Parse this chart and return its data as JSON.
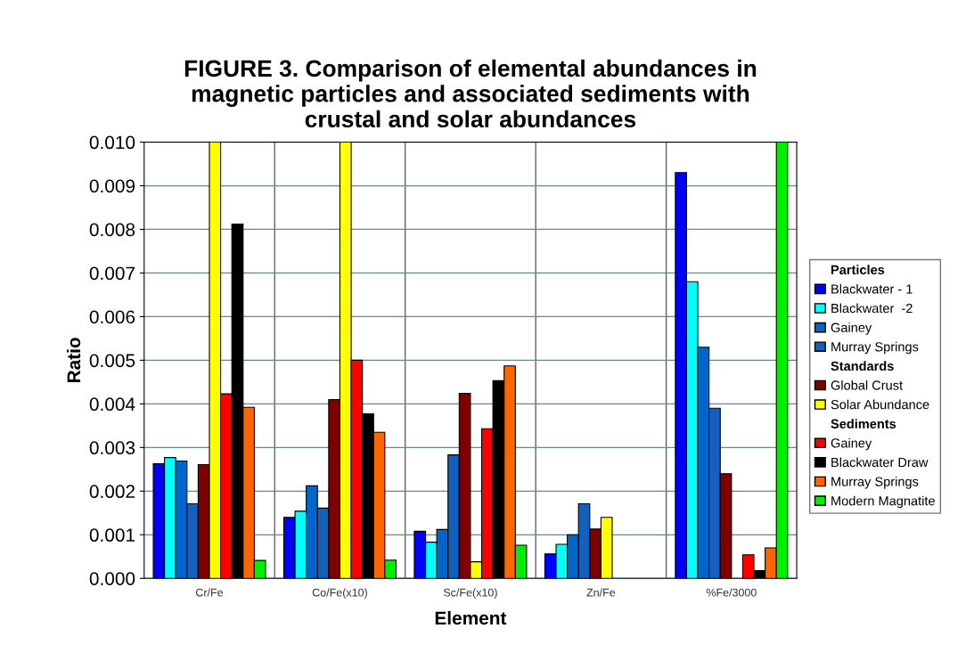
{
  "chart_data": {
    "type": "bar",
    "title": "FIGURE 3. Comparison of elemental abundances in\nmagnetic particles and associated sediments with\ncrustal and solar abundances",
    "xlabel": "Element",
    "ylabel": "Ratio",
    "categories": [
      "Cr/Fe",
      "Co/Fe(x10)",
      "Sc/Fe(x10)",
      "Zn/Fe",
      "%Fe/3000"
    ],
    "series": [
      {
        "name": "Blackwater - 1",
        "color": "#0000ff",
        "values": [
          0.00263,
          0.0014,
          0.00108,
          0.00056,
          0.0093
        ]
      },
      {
        "name": "Blackwater  -2",
        "color": "#00ffff",
        "values": [
          0.00277,
          0.00154,
          0.00083,
          0.00078,
          0.0068
        ]
      },
      {
        "name": "Gainey",
        "color": "#0066cc",
        "values": [
          0.00269,
          0.00212,
          0.00112,
          0.001,
          0.0053
        ]
      },
      {
        "name": "Murray Springs",
        "color": "#1560bd",
        "values": [
          0.00171,
          0.00161,
          0.00283,
          0.00171,
          0.0039
        ]
      },
      {
        "name": "Global Crust",
        "color": "#7f0000",
        "values": [
          0.00261,
          0.0041,
          0.00424,
          0.00113,
          0.0024
        ]
      },
      {
        "name": "Solar Abundance",
        "color": "#ffff00",
        "values": [
          0.01,
          0.01,
          0.00038,
          0.0014,
          null
        ]
      },
      {
        "name": "Gainey",
        "color": "#ff0000",
        "values": [
          0.00423,
          0.005,
          0.00343,
          null,
          0.00054
        ]
      },
      {
        "name": "Blackwater Draw",
        "color": "#000000",
        "values": [
          0.00812,
          0.00377,
          0.00453,
          null,
          0.00018
        ]
      },
      {
        "name": "Murray Springs",
        "color": "#ff6600",
        "values": [
          0.00392,
          0.00335,
          0.00487,
          null,
          0.0007
        ]
      },
      {
        "name": "Modern Magnatite",
        "color": "#00ee00",
        "values": [
          0.00041,
          0.00042,
          0.00076,
          null,
          0.01
        ]
      }
    ],
    "annotations": [
      "Particles",
      "Standards",
      "Sediments"
    ],
    "ylim": [
      0,
      0.01
    ],
    "yticks": [
      {
        "value": 0,
        "label": "0.000"
      },
      {
        "value": 0.001,
        "label": "0.001"
      },
      {
        "value": 0.002,
        "label": "0.002"
      },
      {
        "value": 0.003,
        "label": "0.003"
      },
      {
        "value": 0.004,
        "label": "0.004"
      },
      {
        "value": 0.005,
        "label": "0.005"
      },
      {
        "value": 0.006,
        "label": "0.006"
      },
      {
        "value": 0.007,
        "label": "0.007"
      },
      {
        "value": 0.008,
        "label": "0.008"
      },
      {
        "value": 0.009,
        "label": "0.009"
      },
      {
        "value": 0.01,
        "label": "0.010"
      }
    ],
    "grid": true,
    "legend": "right"
  }
}
